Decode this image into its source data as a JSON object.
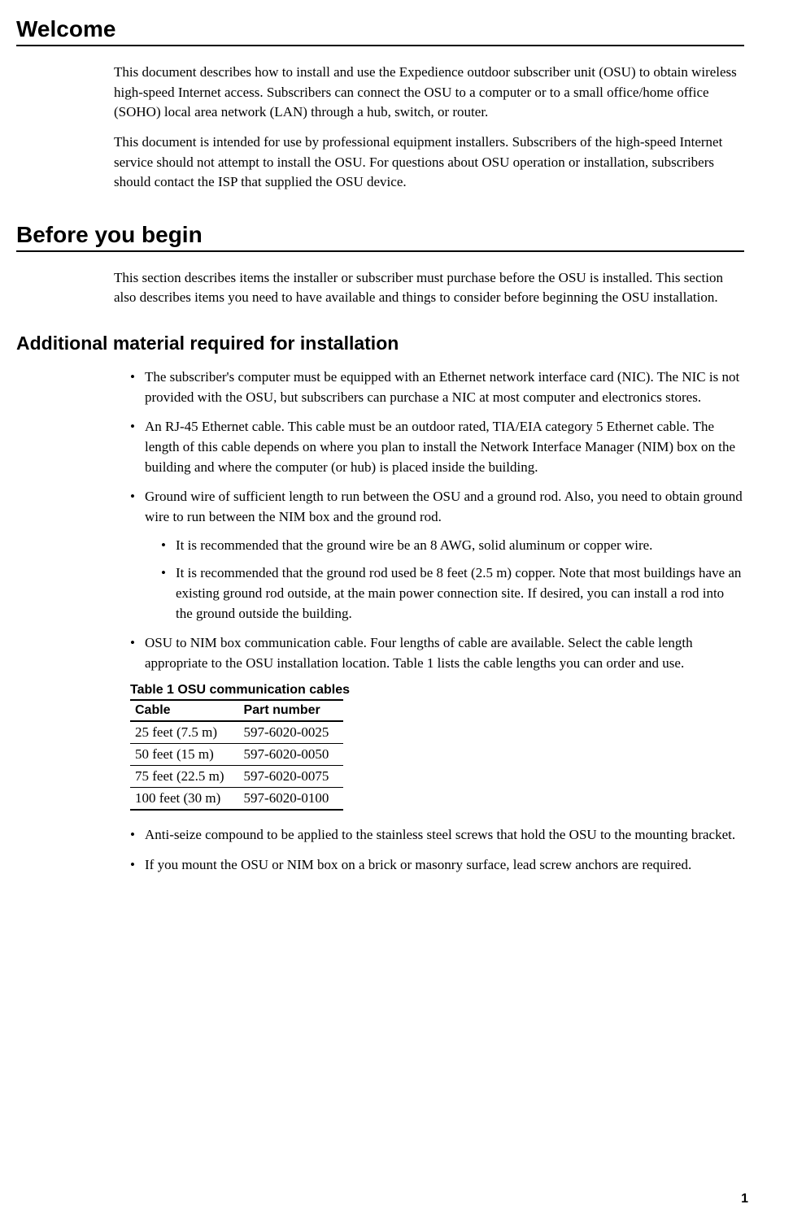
{
  "page": {
    "number": "1"
  },
  "sections": {
    "welcome": {
      "title": "Welcome",
      "para1": "This document describes how to install and use the Expedience outdoor subscriber unit (OSU) to obtain wireless high-speed Internet access. Subscribers can connect the OSU to a computer or to a small office/home office (SOHO) local area network (LAN) through a hub, switch, or router.",
      "para2": "This document is intended for use by professional equipment installers. Subscribers of the high-speed Internet service should not attempt to install the OSU. For questions about OSU operation or installation, subscribers should contact the ISP that supplied the OSU device."
    },
    "before": {
      "title": "Before you begin",
      "para1": "This section describes items the installer or subscriber must purchase before the OSU is installed. This section also describes items you need to have available and things to consider before beginning the OSU installation."
    },
    "materials": {
      "title": "Additional material required for installation",
      "items": [
        "The subscriber's computer must be equipped with an Ethernet network interface card (NIC). The NIC is not provided with the OSU, but subscribers can purchase a NIC at most computer and electronics stores.",
        "An RJ-45 Ethernet cable. This cable must be an outdoor rated, TIA/EIA category 5 Ethernet cable. The length of this cable depends on where you plan to install the Network Interface Manager (NIM) box on the building and where the computer (or hub) is placed inside the building.",
        "Ground wire of sufficient length to run between the OSU and a ground rod. Also, you need to obtain ground wire to run between the NIM box and the ground rod.",
        "OSU to NIM box communication cable. Four lengths of cable are available. Select the cable length appropriate to the OSU installation location. Table 1 lists the cable lengths you can order and use.",
        "Anti-seize compound to be applied to the stainless steel screws that hold the OSU to the mounting bracket.",
        "If you mount the OSU or NIM box on a brick or masonry surface, lead screw anchors are required."
      ],
      "subitems": [
        "It is recommended that the ground wire be an 8 AWG, solid aluminum or copper wire.",
        "It is recommended that the ground rod used be 8 feet (2.5 m) copper. Note that most buildings have an existing ground rod outside, at the main power connection site. If desired, you can install a rod into the ground outside the building."
      ]
    },
    "table": {
      "caption": "Table 1  OSU communication cables",
      "columns": [
        "Cable",
        "Part number"
      ],
      "rows": [
        [
          "25 feet (7.5 m)",
          "597-6020-0025"
        ],
        [
          "50 feet (15 m)",
          "597-6020-0050"
        ],
        [
          "75 feet (22.5 m)",
          "597-6020-0075"
        ],
        [
          "100 feet (30 m)",
          "597-6020-0100"
        ]
      ],
      "col_widths": [
        "150px",
        "150px"
      ]
    }
  },
  "styles": {
    "heading_font": "Verdana, Arial, sans-serif",
    "body_font": "Georgia, 'Times New Roman', serif",
    "h1_fontsize": 28,
    "h2_fontsize": 23,
    "body_fontsize": 17,
    "text_color": "#000000",
    "background_color": "#ffffff",
    "divider_color": "#000000"
  }
}
